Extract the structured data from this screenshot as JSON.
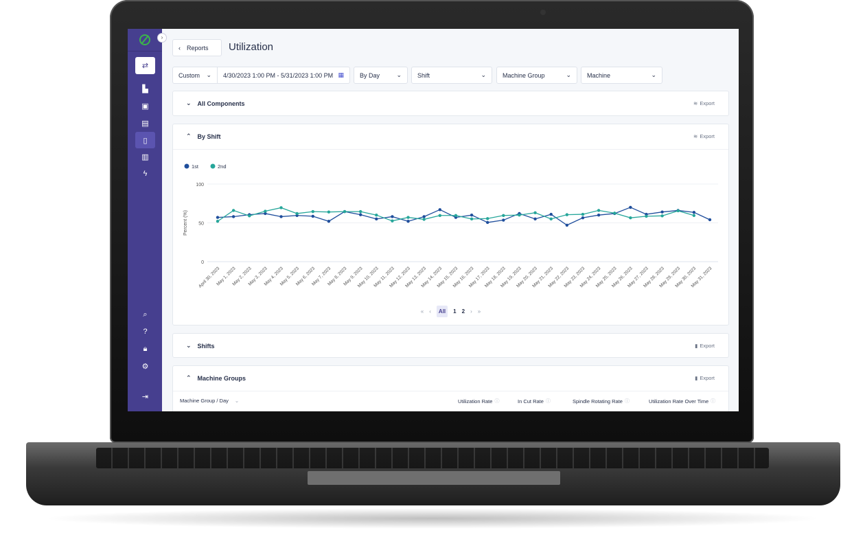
{
  "app": {
    "title": "Utilization",
    "back_label": "Reports",
    "collapse_icon": "chevron-right-icon"
  },
  "sidebar": {
    "top_items": [
      {
        "icon": "shuffle-icon"
      },
      {
        "icon": "factory-icon"
      },
      {
        "icon": "machine-icon"
      },
      {
        "icon": "calendar-icon"
      },
      {
        "icon": "report-icon",
        "active": true
      },
      {
        "icon": "bar-chart-icon"
      },
      {
        "icon": "bolt-icon"
      }
    ],
    "bottom_items": [
      {
        "icon": "search-icon"
      },
      {
        "icon": "help-icon"
      },
      {
        "icon": "lock-icon"
      },
      {
        "icon": "settings-icon"
      },
      {
        "icon": "logout-icon"
      }
    ]
  },
  "filters": {
    "range_type": "Custom",
    "date_range": "4/30/2023 1:00 PM - 5/31/2023 1:00 PM",
    "grouping": "By Day",
    "shift": "Shift",
    "machine_group": "Machine Group",
    "machine": "Machine"
  },
  "sections": {
    "all_components": "All Components",
    "by_shift": "By Shift",
    "shifts": "Shifts",
    "machine_groups": "Machine Groups",
    "export": "Export"
  },
  "pagination": {
    "all": "All",
    "pages": [
      "1",
      "2"
    ],
    "current": "All"
  },
  "table": {
    "columns": [
      "Machine Group / Day",
      "Utilization Rate",
      "In Cut Rate",
      "Spindle Rotating Rate",
      "Utilization Rate Over Time"
    ]
  },
  "colors": {
    "sidebar": "#463f8f",
    "series_1st": "#1f4e9c",
    "series_2nd": "#26a69a"
  },
  "chart_data": {
    "type": "line",
    "ylabel": "Percent (%)",
    "ylim": [
      0,
      100
    ],
    "yticks": [
      0,
      50,
      100
    ],
    "grid": true,
    "legend": "top-left",
    "x": [
      "April 30, 2023",
      "May 1, 2023",
      "May 2, 2023",
      "May 3, 2023",
      "May 4, 2023",
      "May 5, 2023",
      "May 6, 2023",
      "May 7, 2023",
      "May 8, 2023",
      "May 9, 2023",
      "May 10, 2023",
      "May 11, 2023",
      "May 12, 2023",
      "May 13, 2023",
      "May 14, 2023",
      "May 15, 2023",
      "May 16, 2023",
      "May 17, 2023",
      "May 18, 2023",
      "May 19, 2023",
      "May 20, 2023",
      "May 21, 2023",
      "May 22, 2023",
      "May 23, 2023",
      "May 24, 2023",
      "May 25, 2023",
      "May 26, 2023",
      "May 27, 2023",
      "May 28, 2023",
      "May 29, 2023",
      "May 30, 2023",
      "May 31, 2023"
    ],
    "series": [
      {
        "name": "1st",
        "color": "#1f4e9c",
        "values": [
          57,
          58,
          60.5,
          62,
          58,
          59.5,
          58.5,
          52,
          64.5,
          60.5,
          55,
          58,
          52,
          58,
          67,
          57,
          60,
          50.5,
          53.5,
          62,
          55,
          61,
          47,
          56.5,
          60,
          62,
          70,
          61,
          64,
          66,
          63.5,
          54
        ]
      },
      {
        "name": "2nd",
        "color": "#26a69a",
        "values": [
          52,
          66,
          59,
          65,
          69.5,
          62,
          64.5,
          64,
          64.5,
          64.5,
          60,
          52.5,
          57,
          54.5,
          59.5,
          59.5,
          55,
          55.5,
          59.5,
          60,
          63,
          55,
          60.5,
          61,
          66,
          62.5,
          56.5,
          58.5,
          59,
          65.5,
          59.5,
          null
        ]
      }
    ]
  }
}
